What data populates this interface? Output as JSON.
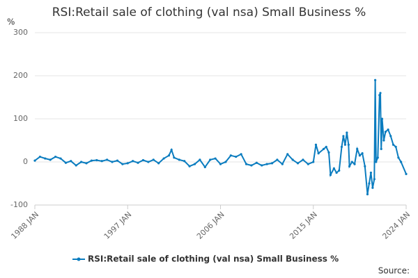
{
  "chart_data": {
    "type": "line",
    "title": "RSI:Retail sale of clothing (val nsa) Small Business %",
    "y_label": "%",
    "source_label": "Source:",
    "x": [
      "1988 JAN",
      "1988 JUL",
      "1989 JAN",
      "1989 JUL",
      "1990 JAN",
      "1990 JUL",
      "1991 JAN",
      "1991 JUL",
      "1992 JAN",
      "1992 JUL",
      "1993 JAN",
      "1993 JUL",
      "1994 JAN",
      "1994 JUL",
      "1995 JAN",
      "1995 JUL",
      "1996 JAN",
      "1996 JUL",
      "1997 JAN",
      "1997 JUL",
      "1998 JAN",
      "1998 JUL",
      "1999 JAN",
      "1999 JUL",
      "2000 JAN",
      "2000 JUL",
      "2001 JAN",
      "2001 APR",
      "2001 JUL",
      "2002 JAN",
      "2002 JUL",
      "2003 JAN",
      "2003 JUL",
      "2004 JAN",
      "2004 JUL",
      "2005 JAN",
      "2005 JUL",
      "2006 JAN",
      "2006 JUL",
      "2007 JAN",
      "2007 JUL",
      "2008 JAN",
      "2008 JUL",
      "2009 JAN",
      "2009 JUL",
      "2010 JAN",
      "2010 JUL",
      "2011 JAN",
      "2011 JUL",
      "2012 JAN",
      "2012 JUL",
      "2013 JAN",
      "2013 JUL",
      "2014 JAN",
      "2014 JUL",
      "2015 JAN",
      "2015 APR",
      "2015 JUL",
      "2016 JAN",
      "2016 APR",
      "2016 JUL",
      "2016 SEP",
      "2017 JAN",
      "2017 APR",
      "2017 JUL",
      "2017 OCT",
      "2017 DEC",
      "2018 FEB",
      "2018 APR",
      "2018 JUN",
      "2018 JUL",
      "2018 OCT",
      "2019 JAN",
      "2019 APR",
      "2019 JUL",
      "2019 OCT",
      "2020 JAN",
      "2020 APR",
      "2020 JUN",
      "2020 AUG",
      "2020 OCT",
      "2020 DEC",
      "2021 JAN",
      "2021 FEB",
      "2021 APR",
      "2021 JUN",
      "2021 JUL",
      "2021 AUG",
      "2021 SEP",
      "2021 NOV",
      "2022 JAN",
      "2022 APR",
      "2022 JUL",
      "2022 OCT",
      "2023 JAN",
      "2023 APR",
      "2023 JUL",
      "2024 JAN"
    ],
    "series": [
      {
        "name": "RSI:Retail sale of clothing (val nsa) Small Business %",
        "color": "#0a7cbf",
        "values": [
          3,
          12,
          8,
          5,
          12,
          8,
          -2,
          2,
          -8,
          0,
          -3,
          3,
          4,
          2,
          5,
          0,
          3,
          -5,
          -3,
          2,
          -2,
          4,
          0,
          5,
          -3,
          8,
          15,
          28,
          10,
          5,
          2,
          -10,
          -5,
          5,
          -12,
          5,
          8,
          -5,
          0,
          15,
          12,
          18,
          -5,
          -8,
          -2,
          -8,
          -5,
          -3,
          5,
          -5,
          18,
          5,
          -3,
          5,
          -5,
          0,
          40,
          20,
          30,
          35,
          22,
          -30,
          -15,
          -25,
          -20,
          35,
          60,
          40,
          68,
          40,
          -10,
          0,
          -5,
          30,
          15,
          20,
          -10,
          -75,
          -50,
          -25,
          -60,
          -40,
          190,
          0,
          10,
          155,
          160,
          30,
          100,
          50,
          70,
          75,
          60,
          40,
          35,
          10,
          0,
          -28
        ]
      }
    ],
    "xticks": [
      "1988 JAN",
      "1997 JAN",
      "2006 JAN",
      "2015 JAN",
      "2024 JAN"
    ],
    "ylim": [
      -100,
      300
    ],
    "yticks": [
      -100,
      0,
      100,
      200,
      300
    ],
    "grid": true
  }
}
